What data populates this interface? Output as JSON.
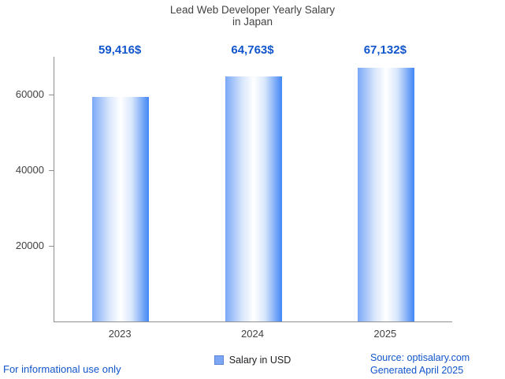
{
  "title": {
    "line1": "Lead Web Developer Yearly Salary",
    "line2": "in Japan"
  },
  "chart_data": {
    "type": "bar",
    "title": "Lead Web Developer Yearly Salary in Japan",
    "categories": [
      "2023",
      "2024",
      "2025"
    ],
    "values": [
      59416,
      64763,
      67132
    ],
    "value_labels": [
      "59,416$",
      "64,763$",
      "67,132$"
    ],
    "xlabel": "",
    "ylabel": "",
    "ylim": [
      0,
      70000
    ],
    "yticks": [
      20000,
      40000,
      60000
    ],
    "grid": false,
    "legend_position": "bottom",
    "series_name": "Salary in USD",
    "bar_color_left": "#7aa8f7",
    "bar_color_right": "#4286f4"
  },
  "legend": {
    "label": "Salary in USD",
    "swatch_color": "#7da7f4"
  },
  "footer": {
    "left": "For informational use only",
    "source": "Source: optisalary.com",
    "generated": "Generated April 2025"
  },
  "colors": {
    "accent_blue": "#1155cc",
    "axis": "#8f8f8f",
    "title_text": "#424242"
  }
}
